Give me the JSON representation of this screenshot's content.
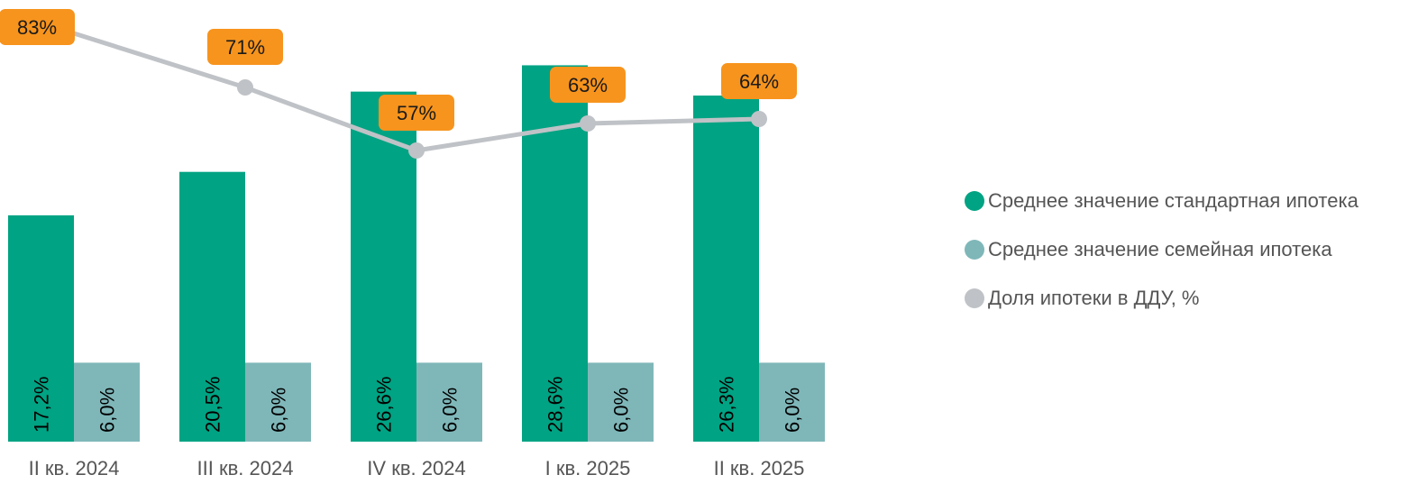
{
  "chart_data": {
    "type": "bar",
    "categories": [
      "II кв. 2024",
      "III кв. 2024",
      "IV кв. 2024",
      "I кв. 2025",
      "II кв. 2025"
    ],
    "series": [
      {
        "name": "Среднее значение стандартная ипотека",
        "kind": "bar",
        "values": [
          17.2,
          20.5,
          26.6,
          28.6,
          26.3
        ],
        "labels": [
          "17,2%",
          "20,5%",
          "26,6%",
          "28,6%",
          "26,3%"
        ],
        "color": "#00A383"
      },
      {
        "name": "Среднее значение семейная ипотека",
        "kind": "bar",
        "values": [
          6.0,
          6.0,
          6.0,
          6.0,
          6.0
        ],
        "labels": [
          "6,0%",
          "6,0%",
          "6,0%",
          "6,0%",
          "6,0%"
        ],
        "color": "#7FB7B9"
      },
      {
        "name": "Доля ипотеки в ДДУ, %",
        "kind": "line",
        "values": [
          83,
          71,
          57,
          63,
          64
        ],
        "labels": [
          "83%",
          "71%",
          "57%",
          "63%",
          "64%"
        ],
        "color": "#BFC2C6"
      }
    ],
    "label_color": "#F7941D",
    "legend_position": "right",
    "grid": false
  }
}
